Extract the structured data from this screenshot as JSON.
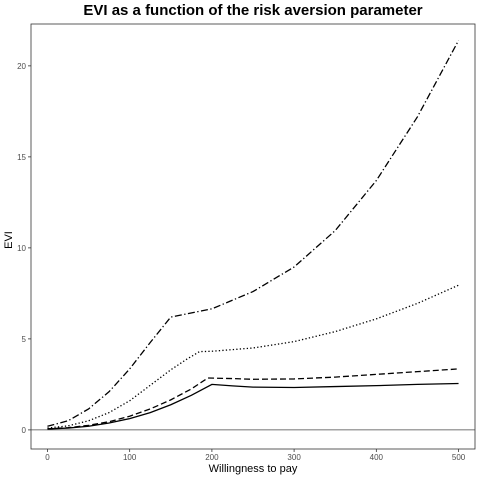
{
  "chart_data": {
    "type": "line",
    "title": "EVI as a function of the risk aversion parameter",
    "xlabel": "Willingness to pay",
    "ylabel": "EVI",
    "xlim": [
      -20,
      520
    ],
    "ylim": [
      -1.05,
      22.3
    ],
    "xticks": [
      0,
      100,
      200,
      300,
      400,
      500
    ],
    "yticks": [
      0,
      5,
      10,
      15,
      20
    ],
    "hline": 0,
    "grid": false,
    "legend": "none",
    "series": [
      {
        "dash": "solid",
        "x": [
          0,
          25,
          50,
          75,
          100,
          125,
          150,
          175,
          200,
          225,
          250,
          300,
          350,
          400,
          450,
          500
        ],
        "y": [
          0.05,
          0.1,
          0.2,
          0.38,
          0.62,
          0.95,
          1.38,
          1.9,
          2.5,
          2.42,
          2.35,
          2.33,
          2.38,
          2.43,
          2.5,
          2.55
        ]
      },
      {
        "dash": "dashed",
        "x": [
          0,
          25,
          50,
          75,
          100,
          125,
          150,
          175,
          195,
          225,
          250,
          300,
          350,
          400,
          450,
          500
        ],
        "y": [
          0.06,
          0.12,
          0.25,
          0.45,
          0.75,
          1.15,
          1.65,
          2.25,
          2.85,
          2.82,
          2.78,
          2.8,
          2.9,
          3.05,
          3.2,
          3.35
        ]
      },
      {
        "dash": "dotted",
        "x": [
          0,
          25,
          50,
          75,
          100,
          125,
          150,
          170,
          185,
          200,
          250,
          300,
          350,
          400,
          450,
          500
        ],
        "y": [
          0.1,
          0.22,
          0.5,
          0.95,
          1.6,
          2.45,
          3.3,
          3.9,
          4.3,
          4.32,
          4.5,
          4.85,
          5.4,
          6.1,
          6.95,
          7.95
        ]
      },
      {
        "dash": "dashdot",
        "x": [
          0,
          25,
          50,
          75,
          100,
          125,
          150,
          200,
          250,
          300,
          350,
          400,
          450,
          500
        ],
        "y": [
          0.2,
          0.5,
          1.15,
          2.1,
          3.35,
          4.8,
          6.2,
          6.65,
          7.6,
          8.95,
          10.95,
          13.7,
          17.2,
          21.4
        ]
      }
    ]
  }
}
